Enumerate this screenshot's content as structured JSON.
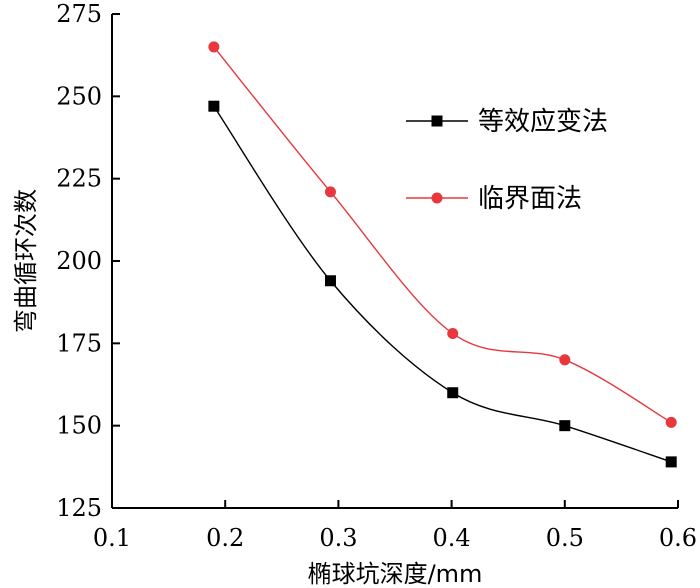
{
  "chart_data": {
    "type": "line",
    "xlabel": "椭球坑深度/mm",
    "ylabel": "弯曲循环次数",
    "xlim": [
      0.1,
      0.6
    ],
    "ylim": [
      125,
      275
    ],
    "xticks": [
      0.1,
      0.2,
      0.3,
      0.4,
      0.5,
      0.6
    ],
    "xtick_labels": [
      "0.1",
      "0.2",
      "0.3",
      "0.4",
      "0.5",
      "0.6"
    ],
    "yticks": [
      125,
      150,
      175,
      200,
      225,
      250,
      275
    ],
    "ytick_labels": [
      "125",
      "150",
      "175",
      "200",
      "225",
      "250",
      "275"
    ],
    "grid": false,
    "legend_position": "top-right",
    "series": [
      {
        "name": "等效应变法",
        "color": "#000000",
        "marker": "square",
        "x": [
          0.19,
          0.293,
          0.401,
          0.5,
          0.594
        ],
        "y": [
          247,
          194,
          160,
          150,
          139
        ]
      },
      {
        "name": "临界面法",
        "color": "#e8383d",
        "marker": "circle",
        "x": [
          0.19,
          0.293,
          0.401,
          0.5,
          0.594
        ],
        "y": [
          265,
          221,
          178,
          170,
          151
        ]
      }
    ]
  }
}
